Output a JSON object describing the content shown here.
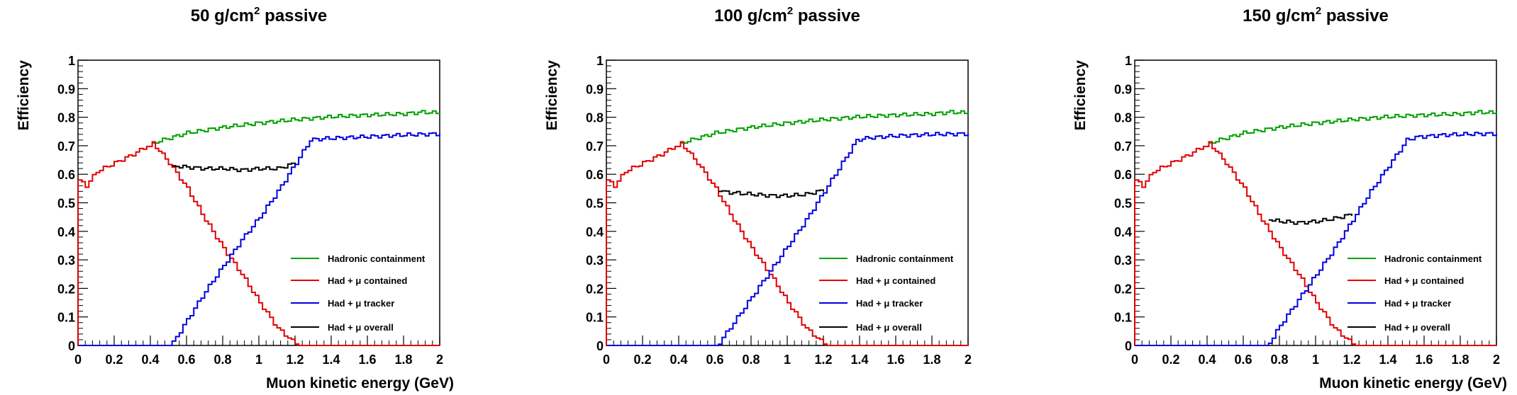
{
  "chart_data": [
    {
      "type": "line",
      "title": "50 g/cm",
      "title_sup": "2",
      "title_tail": " passive",
      "xlabel": "Muon kinetic energy (GeV)",
      "ylabel": "Efficiency",
      "xlim": [
        0,
        2
      ],
      "ylim": [
        0,
        1
      ],
      "xticks": [
        "0",
        "0.2",
        "0.4",
        "0.6",
        "0.8",
        "1",
        "1.2",
        "1.4",
        "1.6",
        "1.8",
        "2"
      ],
      "yticks": [
        "0",
        "0.1",
        "0.2",
        "0.3",
        "0.4",
        "0.5",
        "0.6",
        "0.7",
        "0.8",
        "0.9",
        "1"
      ],
      "grid": false,
      "legend": "bottom-right",
      "series": [
        {
          "name": "Hadronic containment",
          "color": "#00a000",
          "x": [
            0.41,
            0.6,
            0.8,
            1.0,
            1.2,
            1.4,
            1.6,
            1.8,
            1.9,
            2.0
          ],
          "y": [
            0.71,
            0.745,
            0.765,
            0.78,
            0.792,
            0.802,
            0.808,
            0.812,
            0.818,
            0.815
          ]
        },
        {
          "name": "Had +   μ contained",
          "color": "#e00000",
          "x": [
            0.0,
            0.04,
            0.1,
            0.2,
            0.3,
            0.38,
            0.41,
            0.5,
            0.6,
            0.7,
            0.8,
            0.9,
            1.0,
            1.1,
            1.2,
            1.22,
            2.0
          ],
          "y": [
            0.58,
            0.56,
            0.61,
            0.64,
            0.67,
            0.7,
            0.71,
            0.64,
            0.55,
            0.44,
            0.34,
            0.25,
            0.15,
            0.06,
            0.005,
            0.0,
            0.0
          ]
        },
        {
          "name": "Had + μ tracker",
          "color": "#0000e0",
          "x": [
            0.0,
            0.5,
            0.52,
            0.6,
            0.7,
            0.8,
            0.9,
            1.0,
            1.1,
            1.2,
            1.28,
            1.35,
            1.6,
            1.8,
            2.0
          ],
          "y": [
            0.0,
            0.0,
            0.01,
            0.09,
            0.19,
            0.28,
            0.37,
            0.45,
            0.54,
            0.64,
            0.72,
            0.725,
            0.732,
            0.738,
            0.742
          ]
        },
        {
          "name": "Had + μ overall",
          "color": "#000000",
          "x": [
            0.52,
            0.6,
            0.7,
            0.8,
            0.9,
            1.0,
            1.1,
            1.2
          ],
          "y": [
            0.63,
            0.625,
            0.62,
            0.62,
            0.615,
            0.62,
            0.62,
            0.64
          ]
        }
      ]
    },
    {
      "type": "line",
      "title": "100 g/cm",
      "title_sup": "2",
      "title_tail": " passive",
      "xlabel": "",
      "ylabel": "Efficiency",
      "xlim": [
        0,
        2
      ],
      "ylim": [
        0,
        1
      ],
      "xticks": [
        "0",
        "0.2",
        "0.4",
        "0.6",
        "0.8",
        "1",
        "1.2",
        "1.4",
        "1.6",
        "1.8",
        "2"
      ],
      "yticks": [
        "0",
        "0.1",
        "0.2",
        "0.3",
        "0.4",
        "0.5",
        "0.6",
        "0.7",
        "0.8",
        "0.9",
        "1"
      ],
      "grid": false,
      "legend": "bottom-right",
      "series": [
        {
          "name": "Hadronic containment",
          "color": "#00a000",
          "x": [
            0.41,
            0.6,
            0.8,
            1.0,
            1.2,
            1.4,
            1.6,
            1.8,
            1.9,
            2.0
          ],
          "y": [
            0.71,
            0.745,
            0.765,
            0.78,
            0.792,
            0.802,
            0.808,
            0.812,
            0.818,
            0.815
          ]
        },
        {
          "name": "Had +   μ contained",
          "color": "#e00000",
          "x": [
            0.0,
            0.04,
            0.1,
            0.2,
            0.3,
            0.38,
            0.41,
            0.5,
            0.6,
            0.7,
            0.8,
            0.9,
            1.0,
            1.1,
            1.2,
            1.22,
            2.0
          ],
          "y": [
            0.58,
            0.56,
            0.61,
            0.64,
            0.67,
            0.7,
            0.71,
            0.64,
            0.55,
            0.44,
            0.34,
            0.25,
            0.15,
            0.06,
            0.005,
            0.0,
            0.0
          ]
        },
        {
          "name": "Had + μ tracker",
          "color": "#0000e0",
          "x": [
            0.0,
            0.6,
            0.62,
            0.7,
            0.8,
            0.9,
            1.0,
            1.1,
            1.2,
            1.3,
            1.38,
            1.45,
            1.6,
            1.8,
            2.0
          ],
          "y": [
            0.0,
            0.0,
            0.01,
            0.08,
            0.17,
            0.26,
            0.35,
            0.44,
            0.54,
            0.64,
            0.72,
            0.728,
            0.735,
            0.74,
            0.742
          ]
        },
        {
          "name": "Had + μ overall",
          "color": "#000000",
          "x": [
            0.62,
            0.7,
            0.8,
            0.9,
            1.0,
            1.1,
            1.2
          ],
          "y": [
            0.54,
            0.535,
            0.53,
            0.525,
            0.525,
            0.53,
            0.545
          ]
        }
      ]
    },
    {
      "type": "line",
      "title": "150 g/cm",
      "title_sup": "2",
      "title_tail": " passive",
      "xlabel": "Muon kinetic energy (GeV)",
      "ylabel": "Efficiency",
      "xlim": [
        0,
        2
      ],
      "ylim": [
        0,
        1
      ],
      "xticks": [
        "0",
        "0.2",
        "0.4",
        "0.6",
        "0.8",
        "1",
        "1.2",
        "1.4",
        "1.6",
        "1.8",
        "2"
      ],
      "yticks": [
        "0",
        "0.1",
        "0.2",
        "0.3",
        "0.4",
        "0.5",
        "0.6",
        "0.7",
        "0.8",
        "0.9",
        "1"
      ],
      "grid": false,
      "legend": "bottom-right",
      "series": [
        {
          "name": "Hadronic containment",
          "color": "#00a000",
          "x": [
            0.41,
            0.6,
            0.8,
            1.0,
            1.2,
            1.4,
            1.6,
            1.8,
            1.9,
            2.0
          ],
          "y": [
            0.71,
            0.745,
            0.765,
            0.78,
            0.792,
            0.802,
            0.808,
            0.812,
            0.818,
            0.815
          ]
        },
        {
          "name": "Had +   μ contained",
          "color": "#e00000",
          "x": [
            0.0,
            0.04,
            0.1,
            0.2,
            0.3,
            0.38,
            0.41,
            0.5,
            0.6,
            0.7,
            0.8,
            0.9,
            1.0,
            1.1,
            1.2,
            1.22,
            2.0
          ],
          "y": [
            0.58,
            0.56,
            0.61,
            0.64,
            0.67,
            0.7,
            0.71,
            0.64,
            0.55,
            0.44,
            0.34,
            0.25,
            0.15,
            0.06,
            0.005,
            0.0,
            0.0
          ]
        },
        {
          "name": "Had + μ tracker",
          "color": "#0000e0",
          "x": [
            0.0,
            0.72,
            0.74,
            0.8,
            0.9,
            1.0,
            1.1,
            1.2,
            1.3,
            1.4,
            1.5,
            1.55,
            1.7,
            1.9,
            2.0
          ],
          "y": [
            0.0,
            0.0,
            0.01,
            0.07,
            0.16,
            0.25,
            0.34,
            0.44,
            0.54,
            0.63,
            0.72,
            0.73,
            0.738,
            0.742,
            0.742
          ]
        },
        {
          "name": "Had + μ overall",
          "color": "#000000",
          "x": [
            0.74,
            0.8,
            0.9,
            1.0,
            1.1,
            1.2
          ],
          "y": [
            0.44,
            0.435,
            0.43,
            0.435,
            0.445,
            0.46
          ]
        }
      ]
    }
  ]
}
